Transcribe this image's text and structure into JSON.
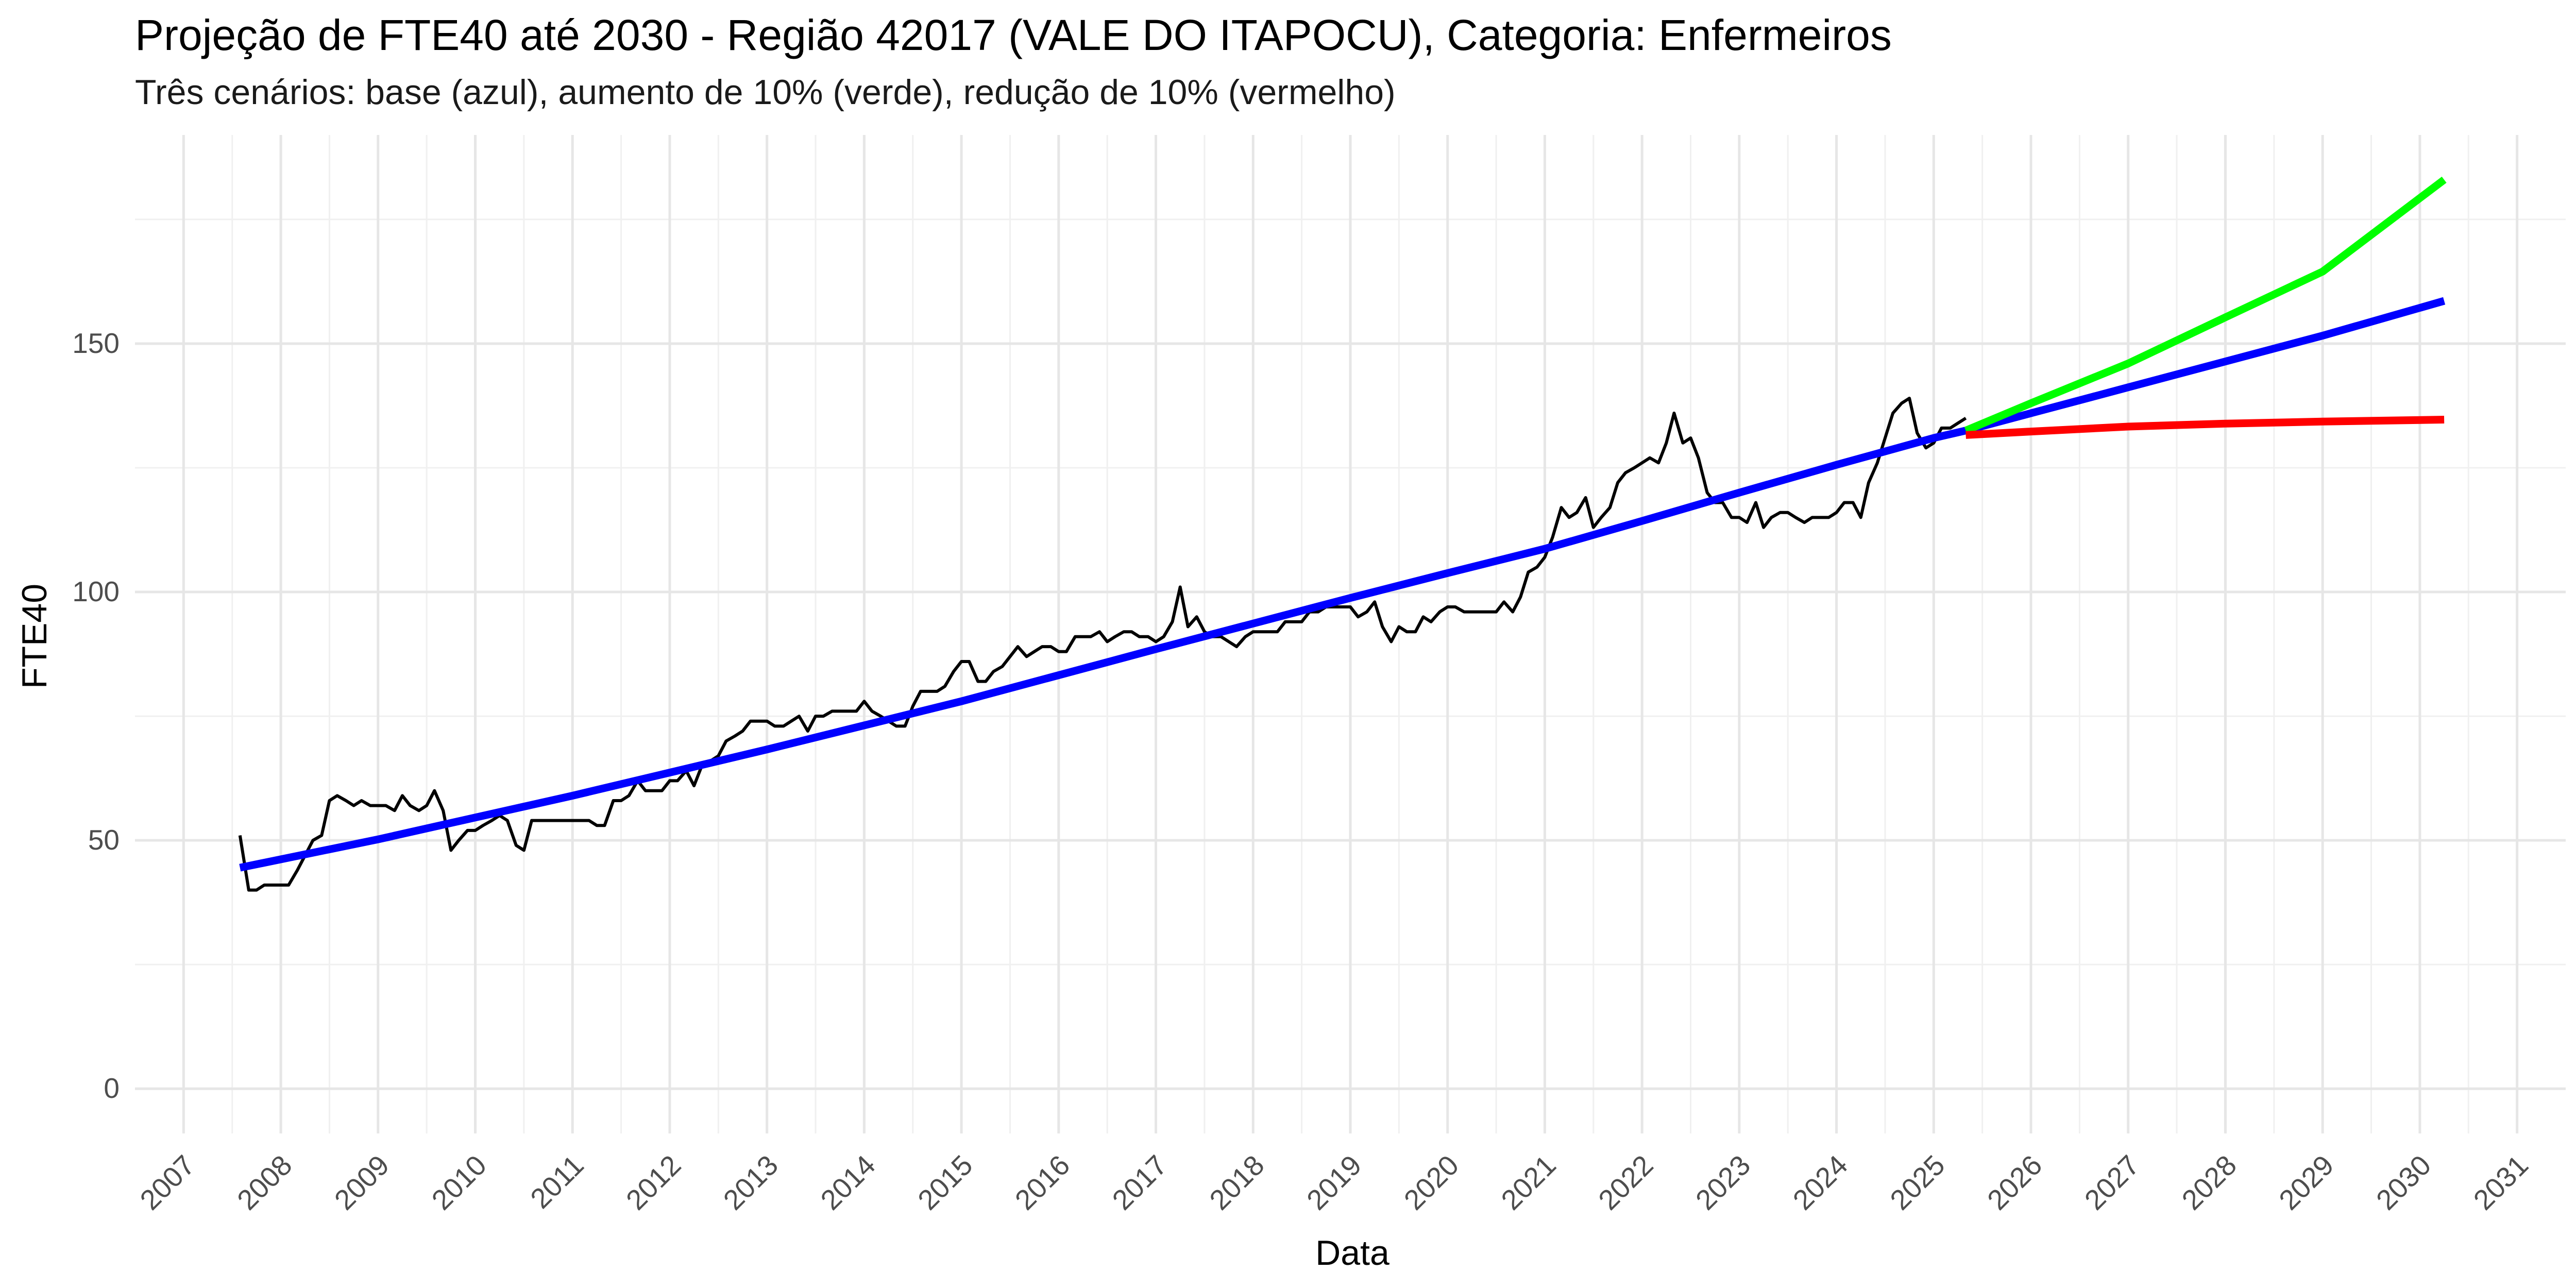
{
  "chart_data": {
    "type": "line",
    "title": "Projeção de FTE40 até 2030 - Região 42017 (VALE DO ITAPOCU), Categoria: Enfermeiros",
    "subtitle": "Três cenários: base (azul), aumento de 10% (verde), redução de 10% (vermelho)",
    "xlabel": "Data",
    "ylabel": "FTE40",
    "xlim": [
      2006.5,
      2031.5
    ],
    "ylim": [
      -9,
      192
    ],
    "x_ticks": [
      2007,
      2008,
      2009,
      2010,
      2011,
      2012,
      2013,
      2014,
      2015,
      2016,
      2017,
      2018,
      2019,
      2020,
      2021,
      2022,
      2023,
      2024,
      2025,
      2026,
      2027,
      2028,
      2029,
      2030,
      2031
    ],
    "y_ticks": [
      0,
      50,
      100,
      150
    ],
    "grid": true,
    "legend": "none",
    "series": [
      {
        "color": "#000000",
        "style": "observed",
        "points": [
          [
            2007.58,
            51
          ],
          [
            2007.67,
            40
          ],
          [
            2007.75,
            40
          ],
          [
            2007.83,
            41
          ],
          [
            2007.92,
            41
          ],
          [
            2008.0,
            41
          ],
          [
            2008.08,
            41
          ],
          [
            2008.17,
            44
          ],
          [
            2008.25,
            47
          ],
          [
            2008.33,
            50
          ],
          [
            2008.42,
            51
          ],
          [
            2008.5,
            58
          ],
          [
            2008.58,
            59
          ],
          [
            2008.67,
            58
          ],
          [
            2008.75,
            57
          ],
          [
            2008.83,
            58
          ],
          [
            2008.92,
            57
          ],
          [
            2009.0,
            57
          ],
          [
            2009.08,
            57
          ],
          [
            2009.17,
            56
          ],
          [
            2009.25,
            59
          ],
          [
            2009.33,
            57
          ],
          [
            2009.42,
            56
          ],
          [
            2009.5,
            57
          ],
          [
            2009.58,
            60
          ],
          [
            2009.67,
            56
          ],
          [
            2009.75,
            48
          ],
          [
            2009.83,
            50
          ],
          [
            2009.92,
            52
          ],
          [
            2010.0,
            52
          ],
          [
            2010.08,
            53
          ],
          [
            2010.17,
            54
          ],
          [
            2010.25,
            55
          ],
          [
            2010.33,
            54
          ],
          [
            2010.42,
            49
          ],
          [
            2010.5,
            48
          ],
          [
            2010.58,
            54
          ],
          [
            2010.67,
            54
          ],
          [
            2010.75,
            54
          ],
          [
            2010.83,
            54
          ],
          [
            2010.92,
            54
          ],
          [
            2011.0,
            54
          ],
          [
            2011.08,
            54
          ],
          [
            2011.17,
            54
          ],
          [
            2011.25,
            53
          ],
          [
            2011.33,
            53
          ],
          [
            2011.42,
            58
          ],
          [
            2011.5,
            58
          ],
          [
            2011.58,
            59
          ],
          [
            2011.67,
            62
          ],
          [
            2011.75,
            60
          ],
          [
            2011.83,
            60
          ],
          [
            2011.92,
            60
          ],
          [
            2012.0,
            62
          ],
          [
            2012.08,
            62
          ],
          [
            2012.17,
            64
          ],
          [
            2012.25,
            61
          ],
          [
            2012.33,
            65
          ],
          [
            2012.42,
            66
          ],
          [
            2012.5,
            67
          ],
          [
            2012.58,
            70
          ],
          [
            2012.67,
            71
          ],
          [
            2012.75,
            72
          ],
          [
            2012.83,
            74
          ],
          [
            2012.92,
            74
          ],
          [
            2013.0,
            74
          ],
          [
            2013.08,
            73
          ],
          [
            2013.17,
            73
          ],
          [
            2013.25,
            74
          ],
          [
            2013.33,
            75
          ],
          [
            2013.42,
            72
          ],
          [
            2013.5,
            75
          ],
          [
            2013.58,
            75
          ],
          [
            2013.67,
            76
          ],
          [
            2013.75,
            76
          ],
          [
            2013.83,
            76
          ],
          [
            2013.92,
            76
          ],
          [
            2014.0,
            78
          ],
          [
            2014.08,
            76
          ],
          [
            2014.17,
            75
          ],
          [
            2014.25,
            74
          ],
          [
            2014.33,
            73
          ],
          [
            2014.42,
            73
          ],
          [
            2014.5,
            77
          ],
          [
            2014.58,
            80
          ],
          [
            2014.67,
            80
          ],
          [
            2014.75,
            80
          ],
          [
            2014.83,
            81
          ],
          [
            2014.92,
            84
          ],
          [
            2015.0,
            86
          ],
          [
            2015.08,
            86
          ],
          [
            2015.17,
            82
          ],
          [
            2015.25,
            82
          ],
          [
            2015.33,
            84
          ],
          [
            2015.42,
            85
          ],
          [
            2015.5,
            87
          ],
          [
            2015.58,
            89
          ],
          [
            2015.67,
            87
          ],
          [
            2015.75,
            88
          ],
          [
            2015.83,
            89
          ],
          [
            2015.92,
            89
          ],
          [
            2016.0,
            88
          ],
          [
            2016.08,
            88
          ],
          [
            2016.17,
            91
          ],
          [
            2016.25,
            91
          ],
          [
            2016.33,
            91
          ],
          [
            2016.42,
            92
          ],
          [
            2016.5,
            90
          ],
          [
            2016.58,
            91
          ],
          [
            2016.67,
            92
          ],
          [
            2016.75,
            92
          ],
          [
            2016.83,
            91
          ],
          [
            2016.92,
            91
          ],
          [
            2017.0,
            90
          ],
          [
            2017.08,
            91
          ],
          [
            2017.17,
            94
          ],
          [
            2017.25,
            101
          ],
          [
            2017.33,
            93
          ],
          [
            2017.42,
            95
          ],
          [
            2017.5,
            92
          ],
          [
            2017.58,
            91
          ],
          [
            2017.67,
            91
          ],
          [
            2017.75,
            90
          ],
          [
            2017.83,
            89
          ],
          [
            2017.92,
            91
          ],
          [
            2018.0,
            92
          ],
          [
            2018.08,
            92
          ],
          [
            2018.17,
            92
          ],
          [
            2018.25,
            92
          ],
          [
            2018.33,
            94
          ],
          [
            2018.42,
            94
          ],
          [
            2018.5,
            94
          ],
          [
            2018.58,
            96
          ],
          [
            2018.67,
            96
          ],
          [
            2018.75,
            97
          ],
          [
            2018.83,
            97
          ],
          [
            2018.92,
            97
          ],
          [
            2019.0,
            97
          ],
          [
            2019.08,
            95
          ],
          [
            2019.17,
            96
          ],
          [
            2019.25,
            98
          ],
          [
            2019.33,
            93
          ],
          [
            2019.42,
            90
          ],
          [
            2019.5,
            93
          ],
          [
            2019.58,
            92
          ],
          [
            2019.67,
            92
          ],
          [
            2019.75,
            95
          ],
          [
            2019.83,
            94
          ],
          [
            2019.92,
            96
          ],
          [
            2020.0,
            97
          ],
          [
            2020.08,
            97
          ],
          [
            2020.17,
            96
          ],
          [
            2020.25,
            96
          ],
          [
            2020.33,
            96
          ],
          [
            2020.42,
            96
          ],
          [
            2020.5,
            96
          ],
          [
            2020.58,
            98
          ],
          [
            2020.67,
            96
          ],
          [
            2020.75,
            99
          ],
          [
            2020.83,
            104
          ],
          [
            2020.92,
            105
          ],
          [
            2021.0,
            107
          ],
          [
            2021.08,
            111
          ],
          [
            2021.17,
            117
          ],
          [
            2021.25,
            115
          ],
          [
            2021.33,
            116
          ],
          [
            2021.42,
            119
          ],
          [
            2021.5,
            113
          ],
          [
            2021.58,
            115
          ],
          [
            2021.67,
            117
          ],
          [
            2021.75,
            122
          ],
          [
            2021.83,
            124
          ],
          [
            2021.92,
            125
          ],
          [
            2022.0,
            126
          ],
          [
            2022.08,
            127
          ],
          [
            2022.17,
            126
          ],
          [
            2022.25,
            130
          ],
          [
            2022.33,
            136
          ],
          [
            2022.42,
            130
          ],
          [
            2022.5,
            131
          ],
          [
            2022.58,
            127
          ],
          [
            2022.67,
            120
          ],
          [
            2022.75,
            118
          ],
          [
            2022.83,
            118
          ],
          [
            2022.92,
            115
          ],
          [
            2023.0,
            115
          ],
          [
            2023.08,
            114
          ],
          [
            2023.17,
            118
          ],
          [
            2023.25,
            113
          ],
          [
            2023.33,
            115
          ],
          [
            2023.42,
            116
          ],
          [
            2023.5,
            116
          ],
          [
            2023.58,
            115
          ],
          [
            2023.67,
            114
          ],
          [
            2023.75,
            115
          ],
          [
            2023.83,
            115
          ],
          [
            2023.92,
            115
          ],
          [
            2024.0,
            116
          ],
          [
            2024.08,
            118
          ],
          [
            2024.17,
            118
          ],
          [
            2024.25,
            115
          ],
          [
            2024.33,
            122
          ],
          [
            2024.42,
            126
          ],
          [
            2024.5,
            131
          ],
          [
            2024.58,
            136
          ],
          [
            2024.67,
            138
          ],
          [
            2024.75,
            139
          ],
          [
            2024.83,
            132
          ],
          [
            2024.92,
            129
          ],
          [
            2025.0,
            130
          ],
          [
            2025.08,
            133
          ],
          [
            2025.17,
            133
          ],
          [
            2025.25,
            134
          ],
          [
            2025.33,
            135
          ]
        ]
      },
      {
        "color": "#0000FF",
        "style": "trend",
        "points": [
          [
            2007.58,
            44.5
          ],
          [
            2009.0,
            50.2
          ],
          [
            2011.0,
            59.0
          ],
          [
            2013.0,
            68.3
          ],
          [
            2015.0,
            78.0
          ],
          [
            2017.0,
            88.5
          ],
          [
            2019.0,
            98.8
          ],
          [
            2020.0,
            103.8
          ],
          [
            2021.0,
            108.7
          ],
          [
            2022.0,
            114.3
          ],
          [
            2023.0,
            120.0
          ],
          [
            2024.0,
            125.6
          ],
          [
            2025.0,
            131.0
          ],
          [
            2025.33,
            132.5
          ]
        ]
      },
      {
        "color": "#0000FF",
        "style": "projection",
        "points": [
          [
            2025.33,
            132.5
          ],
          [
            2027.0,
            141.2
          ],
          [
            2029.0,
            151.6
          ],
          [
            2030.25,
            158.6
          ]
        ]
      },
      {
        "color": "#00FF00",
        "style": "projection",
        "points": [
          [
            2025.33,
            132.5
          ],
          [
            2026.0,
            138.0
          ],
          [
            2027.0,
            146.0
          ],
          [
            2028.0,
            155.3
          ],
          [
            2029.0,
            164.5
          ],
          [
            2030.25,
            183.0
          ]
        ]
      },
      {
        "color": "#FF0000",
        "style": "projection",
        "points": [
          [
            2025.33,
            131.6
          ],
          [
            2026.0,
            132.3
          ],
          [
            2027.0,
            133.3
          ],
          [
            2028.0,
            133.9
          ],
          [
            2029.0,
            134.3
          ],
          [
            2030.25,
            134.7
          ]
        ]
      }
    ]
  }
}
